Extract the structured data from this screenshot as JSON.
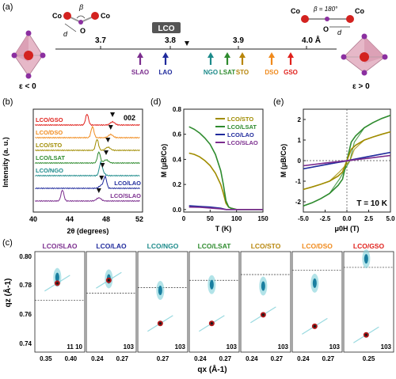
{
  "panel_labels": {
    "a": "(a)",
    "b": "(b)",
    "c": "(c)",
    "d": "(d)",
    "e": "(e)"
  },
  "panel_a": {
    "lco_label": "LCO",
    "ticks": [
      "3.7",
      "3.8",
      "3.9",
      "4.0 Å"
    ],
    "left_labels": {
      "beta": "β",
      "o": "O",
      "d": "d",
      "co1": "Co",
      "co2": "Co",
      "strain": "ε < 0"
    },
    "right_labels": {
      "beta": "β = 180°",
      "o": "O",
      "d": "d",
      "co1": "Co",
      "co2": "Co",
      "strain": "ε > 0"
    },
    "substrates": [
      {
        "name": "SLAO",
        "color": "#7B2D8E"
      },
      {
        "name": "LAO",
        "color": "#1F2A9C"
      },
      {
        "name": "NGO",
        "color": "#1C8A8A"
      },
      {
        "name": "LSAT",
        "color": "#2E8B2E"
      },
      {
        "name": "STO",
        "color": "#B8860B"
      },
      {
        "name": "DSO",
        "color": "#F08A1C"
      },
      {
        "name": "GSO",
        "color": "#E0201B"
      }
    ]
  },
  "panel_b": {
    "ylabel": "Intensity (a. u.)",
    "xlabel": "2θ (degrees)",
    "ticks": [
      "40",
      "44",
      "48",
      "52"
    ],
    "peak_label": "002",
    "curves": [
      {
        "name": "LCO/GSO",
        "color": "#E0201B"
      },
      {
        "name": "LCO/DSO",
        "color": "#F08A1C"
      },
      {
        "name": "LCO/STO",
        "color": "#A08C00"
      },
      {
        "name": "LCO/LSAT",
        "color": "#2E8B2E"
      },
      {
        "name": "LCO/NGO",
        "color": "#1C8A8A"
      },
      {
        "name": "LCO/LAO",
        "color": "#1F2A9C"
      },
      {
        "name": "LCO/SLAO",
        "color": "#7B2D8E"
      }
    ]
  },
  "chart_data": [
    {
      "type": "line",
      "panel": "d",
      "xlabel": "T (K)",
      "ylabel": "M (μB/Co)",
      "xlim": [
        0,
        150
      ],
      "ylim": [
        -0.02,
        0.8
      ],
      "xticks": [
        "0",
        "50",
        "100",
        "150"
      ],
      "yticks": [
        "0.0",
        "0.2",
        "0.4",
        "0.6",
        "0.8"
      ],
      "series": [
        {
          "name": "LCO/STO",
          "color": "#A08C00",
          "x": [
            10,
            20,
            30,
            40,
            50,
            60,
            70,
            75,
            80,
            85,
            90,
            100,
            120,
            150
          ],
          "y": [
            0.45,
            0.44,
            0.42,
            0.39,
            0.35,
            0.29,
            0.2,
            0.13,
            0.05,
            0.02,
            0.01,
            0.0,
            0.0,
            0.0
          ]
        },
        {
          "name": "LCO/LSAT",
          "color": "#2E8B2E",
          "x": [
            10,
            20,
            30,
            40,
            50,
            60,
            70,
            75,
            80,
            85,
            90,
            100,
            120,
            150
          ],
          "y": [
            0.66,
            0.64,
            0.61,
            0.57,
            0.52,
            0.44,
            0.31,
            0.2,
            0.07,
            0.02,
            0.01,
            0.0,
            0.0,
            0.0
          ]
        },
        {
          "name": "LCO/LAO",
          "color": "#1F2A9C",
          "x": [
            10,
            30,
            50,
            70,
            80,
            90,
            120,
            150
          ],
          "y": [
            0.03,
            0.025,
            0.02,
            0.01,
            0.0,
            0.0,
            0.0,
            0.0
          ]
        },
        {
          "name": "LCO/SLAO",
          "color": "#7B2D8E",
          "x": [
            10,
            30,
            50,
            70,
            80,
            90,
            120,
            150
          ],
          "y": [
            0.02,
            0.018,
            0.012,
            0.006,
            0.0,
            0.0,
            0.0,
            0.0
          ]
        }
      ]
    },
    {
      "type": "line",
      "panel": "e",
      "xlabel": "μ0H (T)",
      "ylabel": "M (μB/Co)",
      "annotation": "T = 10 K",
      "xlim": [
        -5,
        5
      ],
      "ylim": [
        -2.5,
        2.5
      ],
      "xticks": [
        "-5.0",
        "-2.5",
        "0.0",
        "2.5",
        "5.0"
      ],
      "yticks": [
        "-2",
        "-1",
        "0",
        "1",
        "2"
      ],
      "series": [
        {
          "name": "LCO/LSAT",
          "color": "#2E8B2E",
          "x": [
            -5,
            -4,
            -3,
            -2,
            -1,
            -0.5,
            0,
            0.5,
            1,
            2,
            3,
            4,
            5
          ],
          "y": [
            -2.2,
            -2.05,
            -1.85,
            -1.6,
            -1.2,
            -0.9,
            0,
            0.9,
            1.2,
            1.6,
            1.85,
            2.05,
            2.2
          ]
        },
        {
          "name": "LCO/STO",
          "color": "#A08C00",
          "x": [
            -5,
            -4,
            -3,
            -2,
            -1,
            -0.5,
            0,
            0.5,
            1,
            2,
            3,
            4,
            5
          ],
          "y": [
            -1.4,
            -1.28,
            -1.15,
            -1.0,
            -0.75,
            -0.55,
            0,
            0.55,
            0.75,
            1.0,
            1.15,
            1.28,
            1.4
          ]
        },
        {
          "name": "LCO/LAO",
          "color": "#1F2A9C",
          "x": [
            -5,
            -2.5,
            0,
            2.5,
            5
          ],
          "y": [
            -0.4,
            -0.2,
            0,
            0.2,
            0.4
          ]
        },
        {
          "name": "LCO/SLAO",
          "color": "#7B2D8E",
          "x": [
            -5,
            -2.5,
            0,
            2.5,
            5
          ],
          "y": [
            -0.25,
            -0.12,
            0,
            0.12,
            0.25
          ]
        }
      ]
    }
  ],
  "panel_c": {
    "ylabel": "qz (Å-1)",
    "xlabel": "qx (Å-1)",
    "yticks": [
      "0.74",
      "0.76",
      "0.78",
      "0.80"
    ],
    "maps": [
      {
        "title": "LCO/SLAO",
        "color": "#7B2D8E",
        "refl": "11 10",
        "xticks": [
          "0.35",
          "0.40"
        ]
      },
      {
        "title": "LCO/LAO",
        "color": "#1F2A9C",
        "refl": "103",
        "xticks": [
          "0.24",
          "0.27"
        ]
      },
      {
        "title": "LCO/NGO",
        "color": "#1C8A8A",
        "refl": "103",
        "xticks": [
          "0.27"
        ]
      },
      {
        "title": "LCO/LSAT",
        "color": "#2E8B2E",
        "refl": "103",
        "xticks": [
          "0.24",
          "0.27"
        ]
      },
      {
        "title": "LCO/STO",
        "color": "#B8860B",
        "refl": "103",
        "xticks": [
          "0.24",
          "0.27"
        ]
      },
      {
        "title": "LCO/DSO",
        "color": "#F08A1C",
        "refl": "103",
        "xticks": [
          "0.24",
          "0.27"
        ]
      },
      {
        "title": "LCO/GSO",
        "color": "#E0201B",
        "refl": "103",
        "xticks": [
          "0.25"
        ]
      }
    ]
  }
}
